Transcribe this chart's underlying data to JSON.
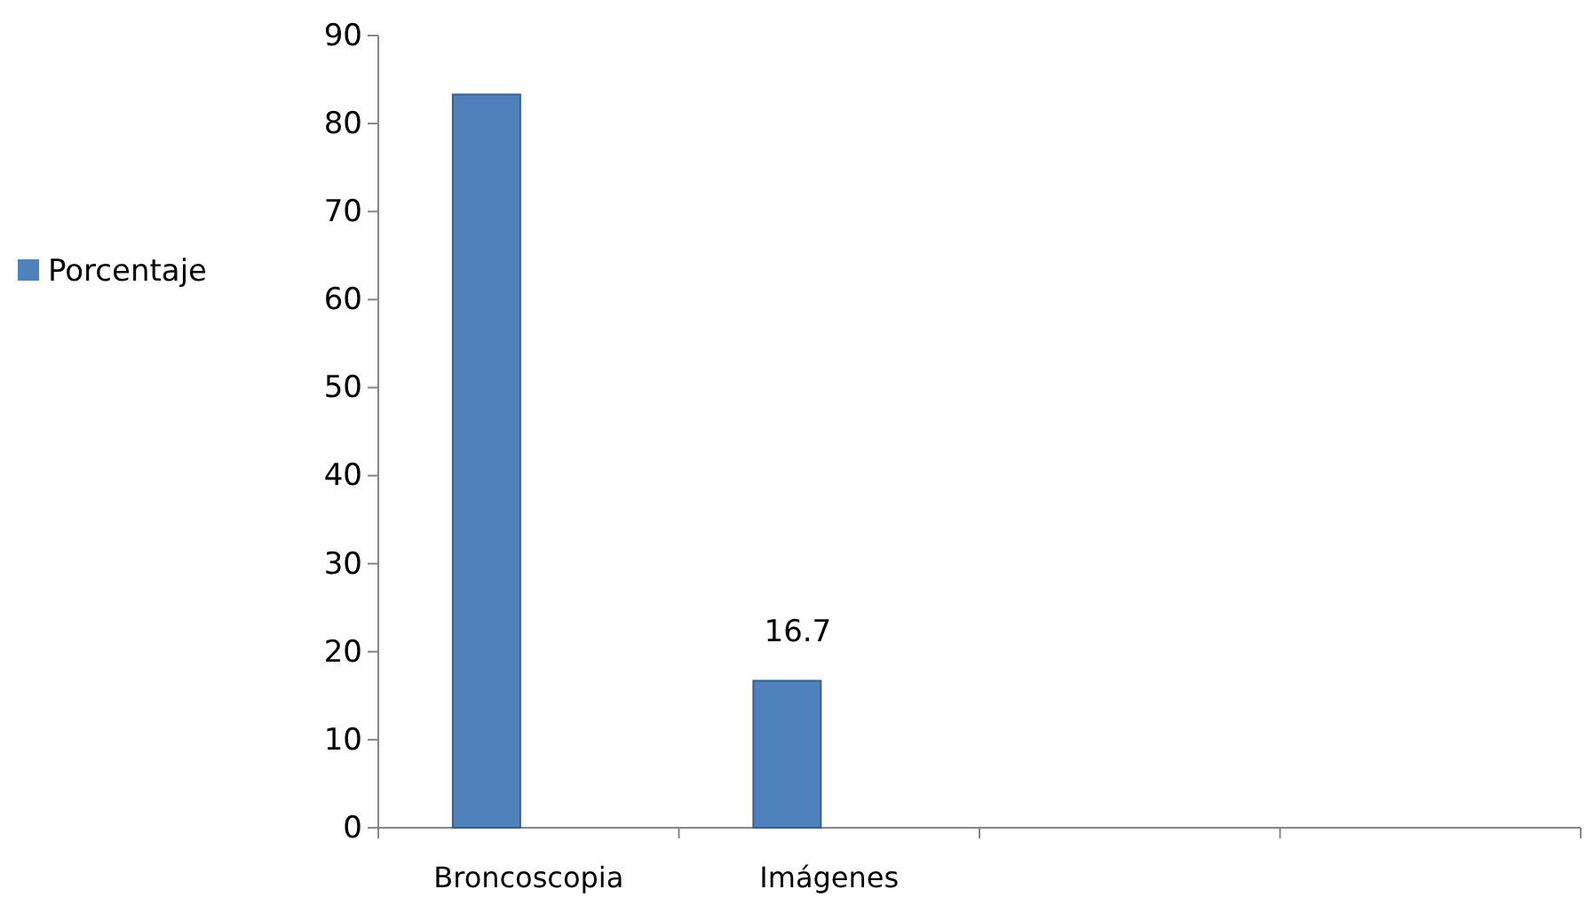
{
  "chart_data": {
    "type": "bar",
    "categories": [
      "Broncoscopia",
      "Imágenes",
      null,
      null
    ],
    "series": [
      {
        "name": "Porcentaje",
        "color": "#4f81bd",
        "values": [
          83.3,
          16.7,
          null,
          null
        ],
        "value_labels": [
          null,
          "16.7",
          null,
          null
        ]
      }
    ],
    "ylim": [
      0,
      90
    ],
    "yticks": [
      0,
      10,
      20,
      30,
      40,
      50,
      60,
      70,
      80,
      90
    ],
    "grid": false,
    "legend": "left"
  }
}
